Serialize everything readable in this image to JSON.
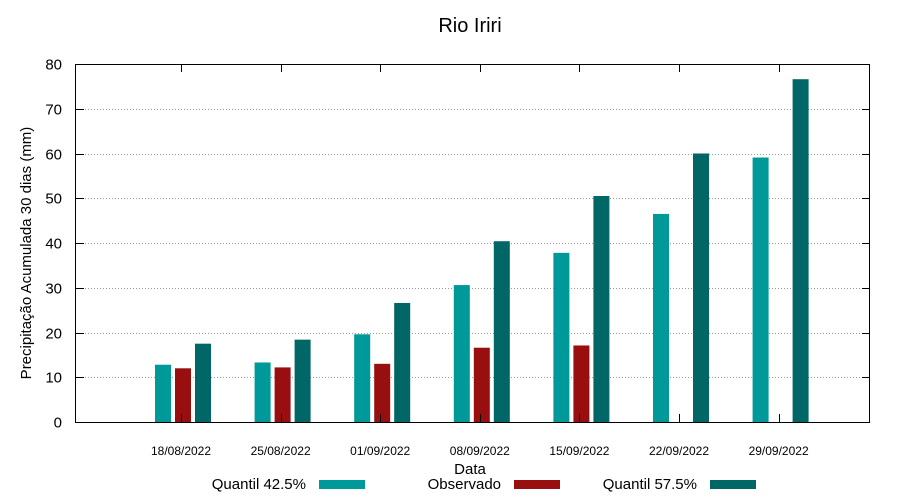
{
  "chart_data": {
    "type": "bar",
    "title": "Rio Iriri",
    "xlabel": "Data",
    "ylabel": "Precipitação Acumulada 30 dias (mm)",
    "ylim": [
      0,
      80
    ],
    "yticks": [
      0,
      10,
      20,
      30,
      40,
      50,
      60,
      70,
      80
    ],
    "grid": true,
    "legend_position": "bottom",
    "categories": [
      "18/08/2022",
      "25/08/2022",
      "01/09/2022",
      "08/09/2022",
      "15/09/2022",
      "22/09/2022",
      "29/09/2022"
    ],
    "series": [
      {
        "name": "Quantil 42.5%",
        "color": "#009999",
        "values": [
          12.8,
          13.3,
          19.6,
          30.6,
          37.8,
          46.5,
          59.1
        ]
      },
      {
        "name": "Observado",
        "color": "#990f0f",
        "values": [
          12.0,
          12.2,
          13.0,
          16.6,
          17.1,
          null,
          null
        ]
      },
      {
        "name": "Quantil 57.5%",
        "color": "#006666",
        "values": [
          17.5,
          18.4,
          26.6,
          40.4,
          50.5,
          60.0,
          76.6
        ]
      }
    ]
  }
}
